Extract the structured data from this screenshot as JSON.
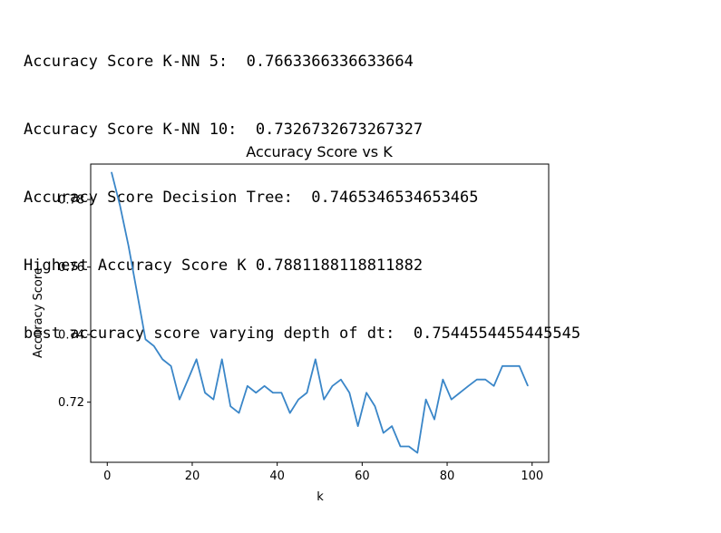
{
  "output": {
    "lines": [
      "Accuracy Score K-NN 5:  0.7663366336633664",
      "Accuracy Score K-NN 10:  0.7326732673267327",
      "Accuracy Score Decision Tree:  0.7465346534653465",
      "Highest Accuracy Score K 0.7881188118811882",
      "best accuracy score varying depth of dt:  0.7544554455445545"
    ]
  },
  "colors": {
    "line": "#3a86c8",
    "axis": "#000000",
    "text": "#000000"
  },
  "chart_data": {
    "type": "line",
    "title": "Accuracy Score vs K",
    "xlabel": "k",
    "ylabel": "Accuracy Score",
    "xlim": [
      -3.9,
      103.9
    ],
    "ylim": [
      0.7022,
      0.7905
    ],
    "xticks": [
      0,
      20,
      40,
      60,
      80,
      100
    ],
    "yticks": [
      0.72,
      0.74,
      0.76,
      0.78
    ],
    "xtick_labels": [
      "0",
      "20",
      "40",
      "60",
      "80",
      "100"
    ],
    "ytick_labels": [
      "0.72",
      "0.74",
      "0.76",
      "0.78"
    ],
    "grid": false,
    "series": [
      {
        "x": [
          1,
          3,
          5,
          7,
          9,
          11,
          13,
          15,
          17,
          19,
          21,
          23,
          25,
          27,
          29,
          31,
          33,
          35,
          37,
          39,
          41,
          43,
          45,
          47,
          49,
          51,
          53,
          55,
          57,
          59,
          61,
          63,
          65,
          67,
          69,
          71,
          73,
          75,
          77,
          79,
          81,
          83,
          85,
          87,
          89,
          91,
          93,
          95,
          97,
          99
        ],
        "values": [
          0.7881,
          0.7782,
          0.7663,
          0.7525,
          0.7386,
          0.7366,
          0.7327,
          0.7307,
          0.7208,
          0.7267,
          0.7327,
          0.7228,
          0.7208,
          0.7327,
          0.7188,
          0.7168,
          0.7248,
          0.7228,
          0.7248,
          0.7228,
          0.7228,
          0.7168,
          0.7208,
          0.7228,
          0.7327,
          0.7208,
          0.7248,
          0.7267,
          0.7228,
          0.7129,
          0.7228,
          0.7188,
          0.7109,
          0.7129,
          0.7069,
          0.7069,
          0.705,
          0.7208,
          0.7149,
          0.7267,
          0.7208,
          0.7228,
          0.7248,
          0.7267,
          0.7267,
          0.7248,
          0.7307,
          0.7307,
          0.7307,
          0.7248
        ]
      }
    ]
  }
}
